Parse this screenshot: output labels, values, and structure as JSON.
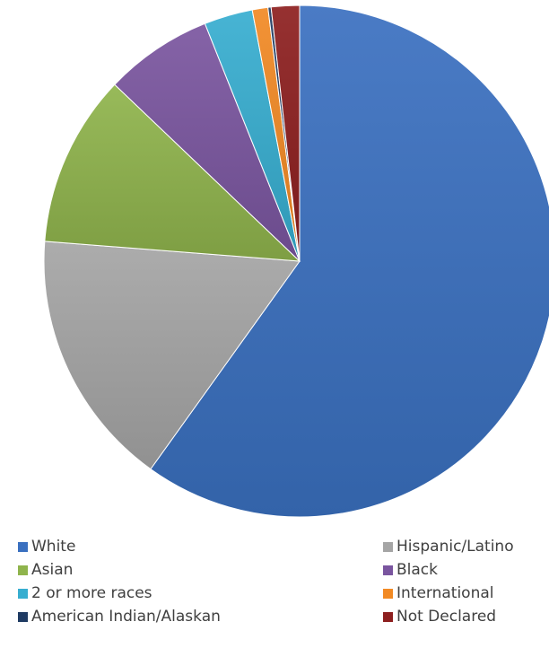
{
  "chart_data": {
    "type": "pie",
    "slices": [
      {
        "label": "White",
        "value": 60.5,
        "color": "#3a70c0"
      },
      {
        "label": "Hispanic/Latino",
        "value": 16.5,
        "color": "#a5a5a5"
      },
      {
        "label": "Asian",
        "value": 11.0,
        "color": "#8fb44c"
      },
      {
        "label": "Black",
        "value": 6.9,
        "color": "#7a559f"
      },
      {
        "label": "2 or more races",
        "value": 3.1,
        "color": "#37aed0"
      },
      {
        "label": "International",
        "value": 1.0,
        "color": "#f28a24"
      },
      {
        "label": "American Indian/Alaskan",
        "value": 0.2,
        "color": "#1f3b63"
      },
      {
        "label": "Not Declared",
        "value": 1.8,
        "color": "#8d1f1f"
      }
    ],
    "start_angle": "top",
    "direction": "clockwise",
    "legend_position": "bottom",
    "legend": [
      "White",
      "Hispanic/Latino",
      "Asian",
      "Black",
      "2 or more races",
      "International",
      "American Indian/Alaskan",
      "Not Declared"
    ]
  }
}
